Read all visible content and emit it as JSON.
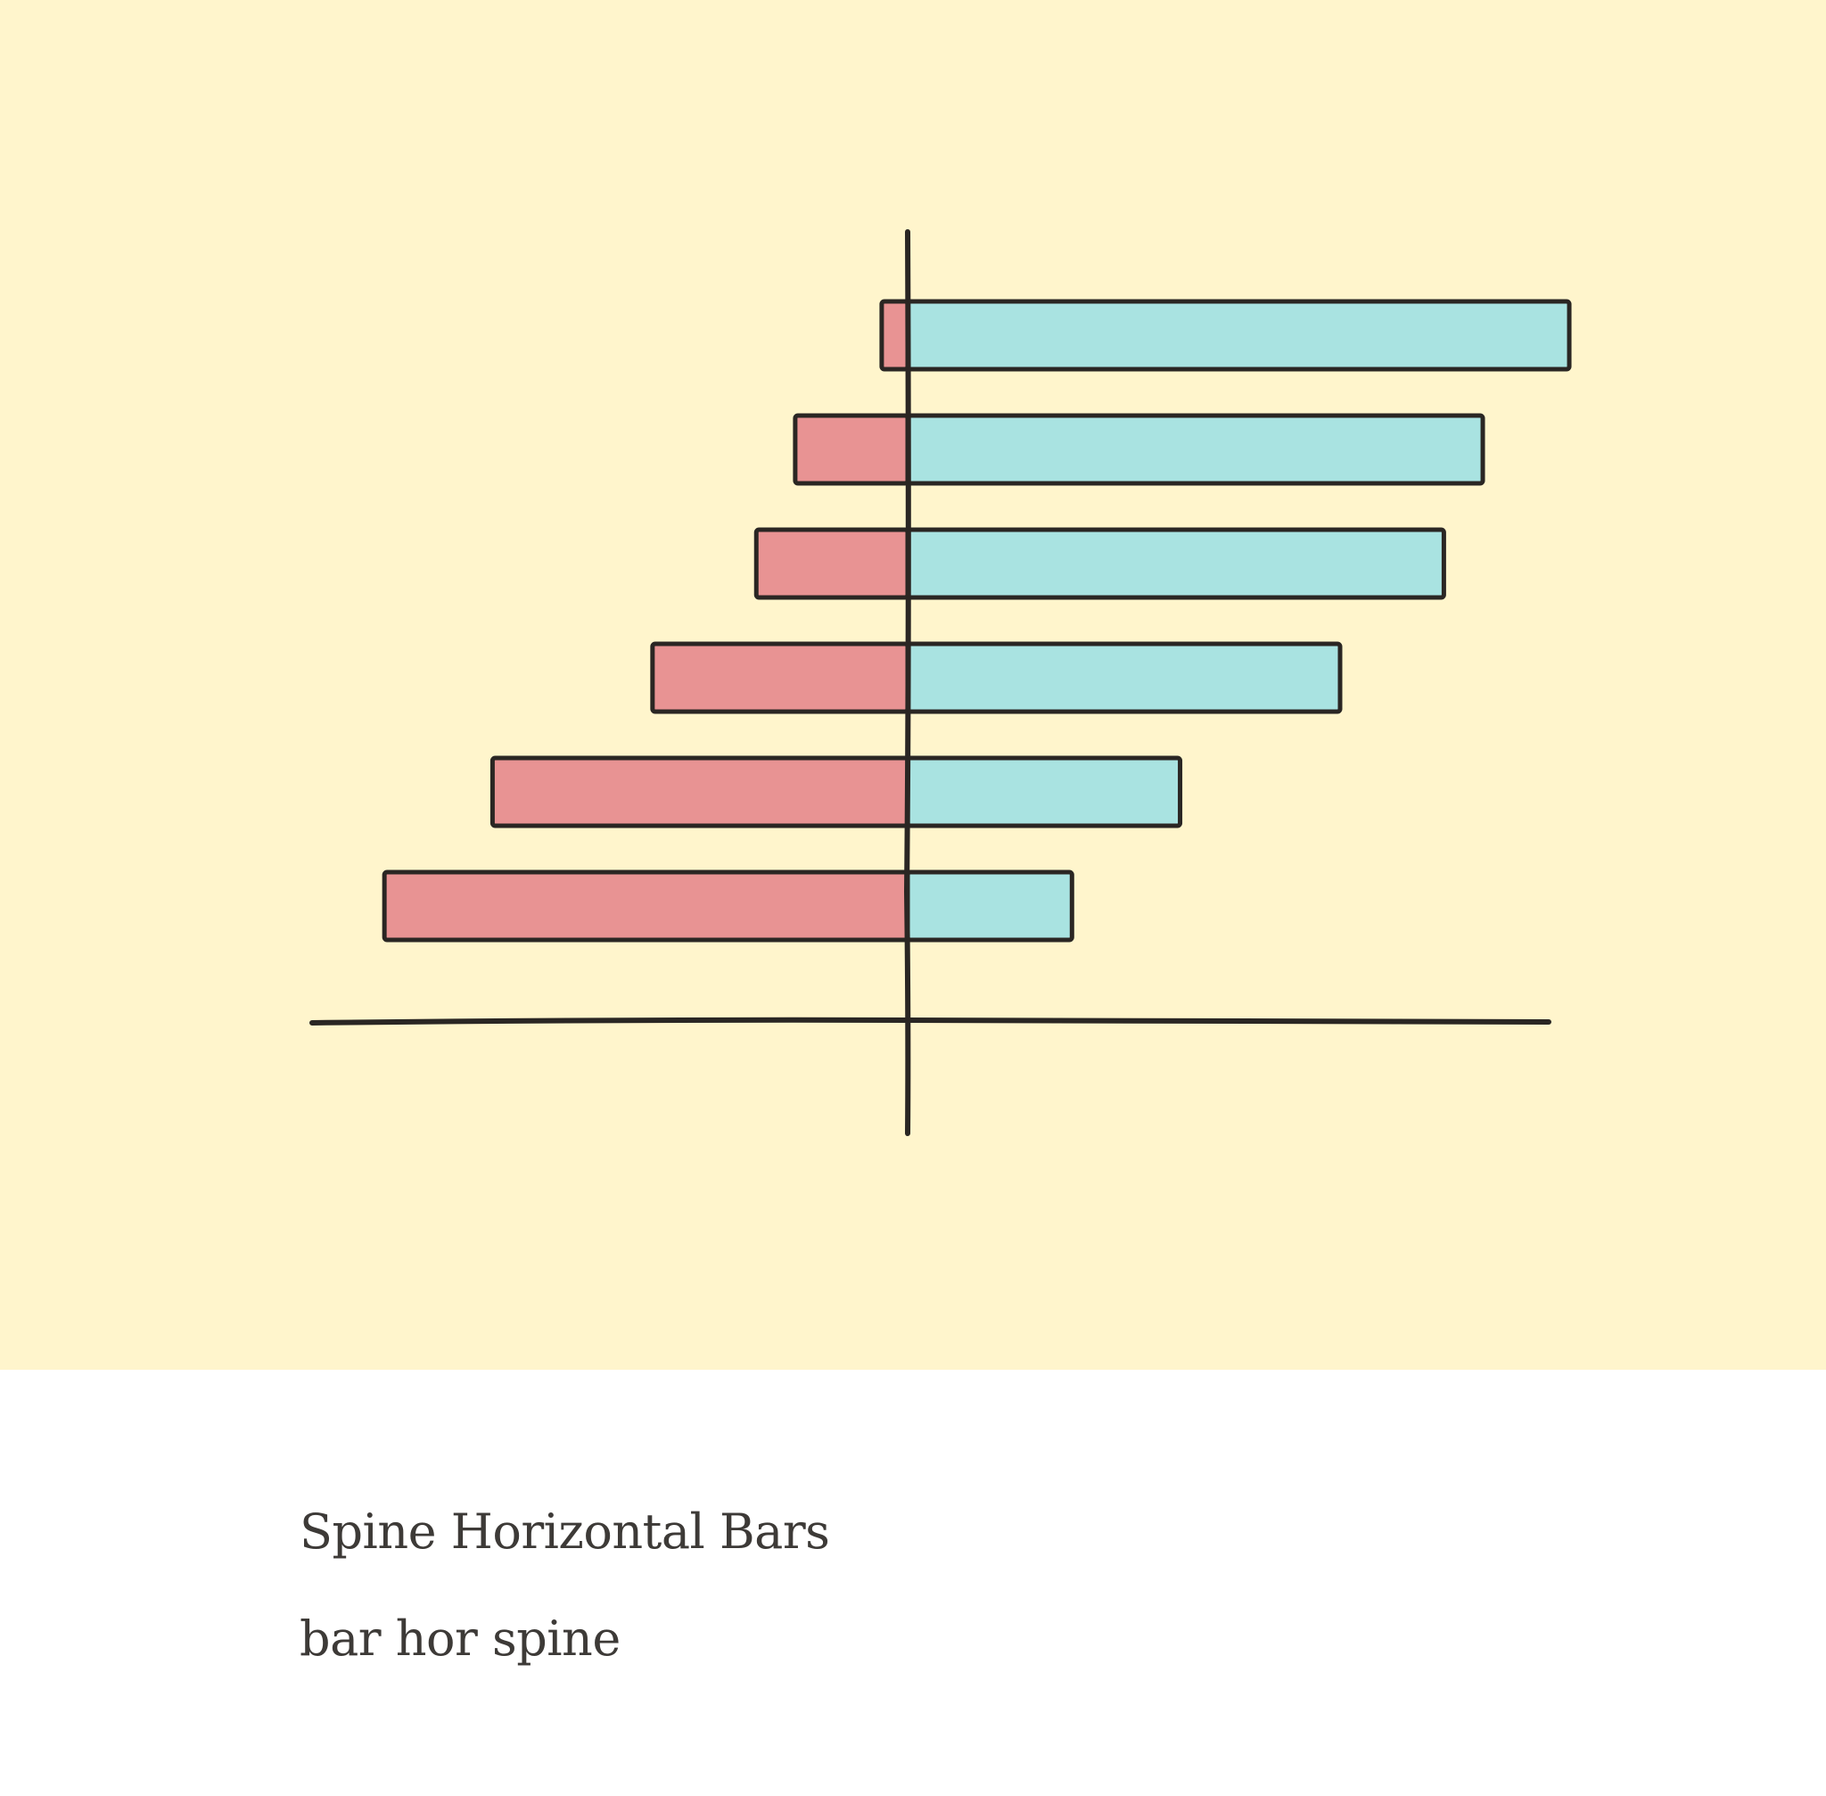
{
  "caption": {
    "title": "Spine Horizontal Bars",
    "subtitle": "bar hor spine"
  },
  "colors": {
    "background": "#fff5cc",
    "negative": "#e89393",
    "positive": "#a9e3e1",
    "outline": "#2a2623"
  },
  "chart_data": {
    "type": "bar",
    "orientation": "horizontal",
    "title": "",
    "xlabel": "",
    "ylabel": "",
    "grid": false,
    "legend": "none",
    "xlim": [
      -13.7,
      14.5
    ],
    "categories": [
      "",
      "",
      "",
      "",
      "",
      ""
    ],
    "series": [
      {
        "values": [
          -0.6,
          -2.6,
          -3.5,
          -5.9,
          -9.6,
          -12.1
        ]
      },
      {
        "values": [
          15.3,
          13.3,
          12.4,
          10.0,
          6.3,
          3.8
        ]
      }
    ]
  }
}
